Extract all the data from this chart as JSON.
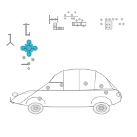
{
  "bg_color": "#ffffff",
  "line_color": "#909090",
  "highlight_color": "#4ab8cc",
  "part_color": "#909090",
  "fig_width": 2.0,
  "fig_height": 2.0,
  "dpi": 100,
  "xlim": [
    0,
    200
  ],
  "ylim": [
    0,
    200
  ]
}
